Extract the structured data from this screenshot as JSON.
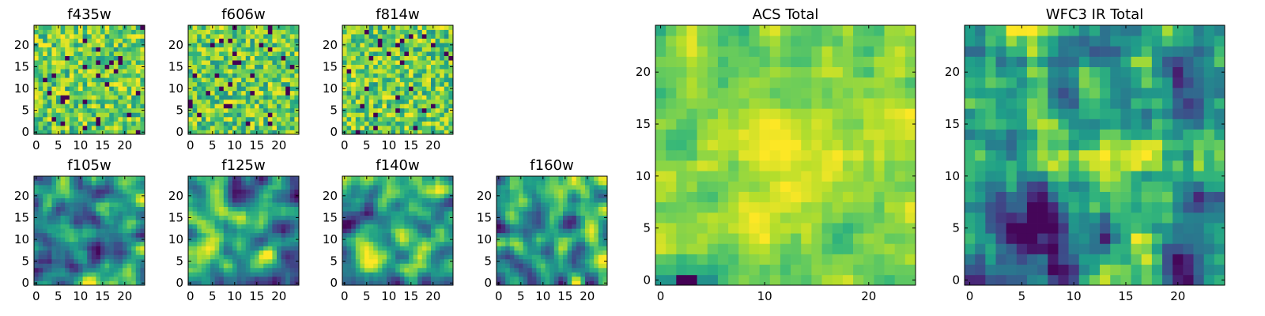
{
  "figure_title": "",
  "colormap": "viridis",
  "colors": {
    "low": "#440154",
    "mid": "#21918c",
    "high": "#fde725"
  },
  "chart_data": [
    {
      "type": "heatmap",
      "title": "f435w",
      "shape": [
        24,
        24
      ],
      "xticks": [
        0,
        5,
        10,
        15,
        20
      ],
      "yticks": [
        0,
        5,
        10,
        15,
        20
      ],
      "xlim": [
        0,
        24
      ],
      "ylim": [
        0,
        24
      ],
      "texture": "pixel noise, mostly green-yellow with scattered dark pixels"
    },
    {
      "type": "heatmap",
      "title": "f606w",
      "shape": [
        24,
        24
      ],
      "xticks": [
        0,
        5,
        10,
        15,
        20
      ],
      "yticks": [
        0,
        5,
        10,
        15,
        20
      ],
      "xlim": [
        0,
        24
      ],
      "ylim": [
        0,
        24
      ],
      "texture": "pixel noise with several dark pixels"
    },
    {
      "type": "heatmap",
      "title": "f814w",
      "shape": [
        24,
        24
      ],
      "xticks": [
        0,
        5,
        10,
        15,
        20
      ],
      "yticks": [
        0,
        5,
        10,
        15,
        20
      ],
      "xlim": [
        0,
        24
      ],
      "ylim": [
        0,
        24
      ],
      "texture": "pixel noise with many dark pixels"
    },
    {
      "type": "heatmap",
      "title": "f105w",
      "shape": [
        24,
        24
      ],
      "xticks": [
        0,
        5,
        10,
        15,
        20
      ],
      "yticks": [
        0,
        5,
        10,
        15,
        20
      ],
      "xlim": [
        0,
        24
      ],
      "ylim": [
        0,
        24
      ],
      "texture": "smooth correlated noise"
    },
    {
      "type": "heatmap",
      "title": "f125w",
      "shape": [
        24,
        24
      ],
      "xticks": [
        0,
        5,
        10,
        15,
        20
      ],
      "yticks": [
        0,
        5,
        10,
        15,
        20
      ],
      "xlim": [
        0,
        24
      ],
      "ylim": [
        0,
        24
      ],
      "texture": "smooth correlated noise"
    },
    {
      "type": "heatmap",
      "title": "f140w",
      "shape": [
        24,
        24
      ],
      "xticks": [
        0,
        5,
        10,
        15,
        20
      ],
      "yticks": [
        0,
        5,
        10,
        15,
        20
      ],
      "xlim": [
        0,
        24
      ],
      "ylim": [
        0,
        24
      ],
      "texture": "smooth correlated noise"
    },
    {
      "type": "heatmap",
      "title": "f160w",
      "shape": [
        24,
        24
      ],
      "xticks": [
        0,
        5,
        10,
        15,
        20
      ],
      "yticks": [
        0,
        5,
        10,
        15,
        20
      ],
      "xlim": [
        0,
        24
      ],
      "ylim": [
        0,
        24
      ],
      "texture": "smooth correlated noise"
    },
    {
      "type": "heatmap",
      "title": "ACS Total",
      "shape": [
        24,
        24
      ],
      "xticks": [
        0,
        10,
        20
      ],
      "yticks": [
        0,
        5,
        10,
        15,
        20
      ],
      "xlim": [
        0,
        24
      ],
      "ylim": [
        0,
        24
      ],
      "texture": "pixel noise with a bright region near the centre"
    },
    {
      "type": "heatmap",
      "title": "WFC3 IR Total",
      "shape": [
        24,
        24
      ],
      "xticks": [
        0,
        5,
        10,
        15,
        20
      ],
      "yticks": [
        0,
        5,
        10,
        15,
        20
      ],
      "xlim": [
        0,
        24
      ],
      "ylim": [
        0,
        24
      ],
      "texture": "smooth noise with a bright diagonal region and a dark patch lower left"
    }
  ]
}
